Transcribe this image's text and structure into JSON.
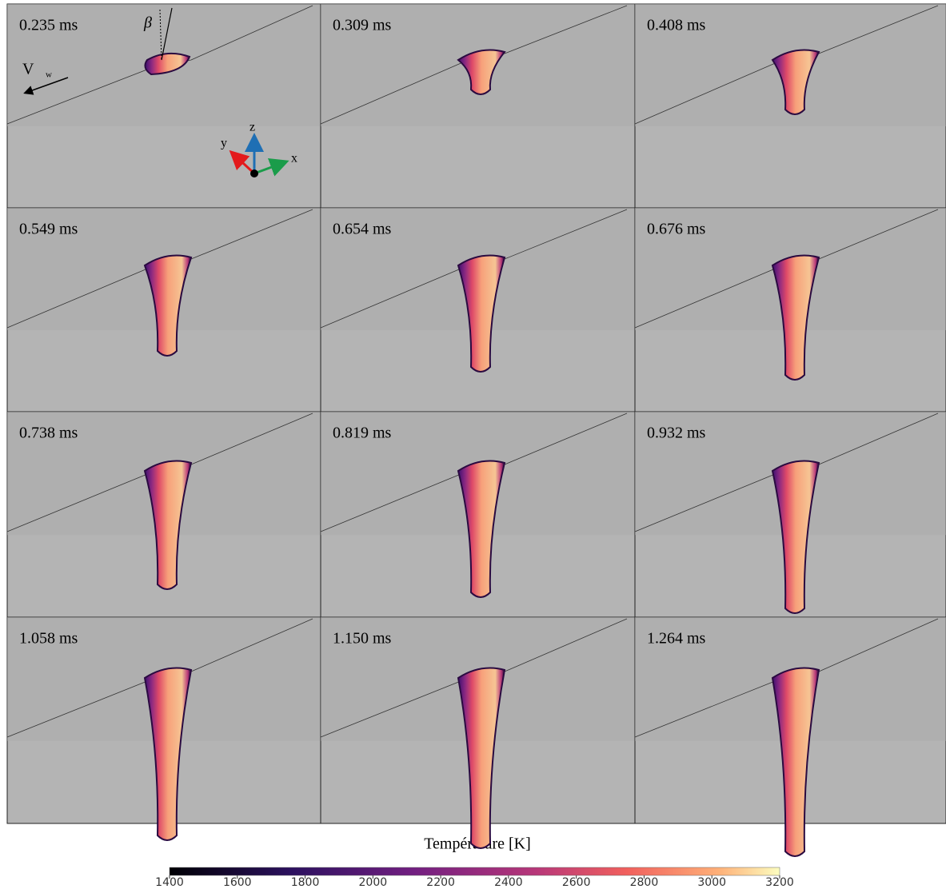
{
  "panels": [
    {
      "time": "0.235 ms"
    },
    {
      "time": "0.309 ms"
    },
    {
      "time": "0.408 ms"
    },
    {
      "time": "0.549 ms"
    },
    {
      "time": "0.654 ms"
    },
    {
      "time": "0.676 ms"
    },
    {
      "time": "0.738 ms"
    },
    {
      "time": "0.819 ms"
    },
    {
      "time": "0.932 ms"
    },
    {
      "time": "1.058 ms"
    },
    {
      "time": "1.150 ms"
    },
    {
      "time": "1.264 ms"
    }
  ],
  "annotations": {
    "beta": "β",
    "velocity": "V",
    "velocity_sub": "w",
    "axis_z": "z",
    "axis_y": "y",
    "axis_x": "x"
  },
  "colorbar": {
    "title": "Température [K]",
    "lim": [
      1400,
      3200
    ],
    "ticks": [
      1400,
      1600,
      1800,
      2000,
      2200,
      2400,
      2600,
      2800,
      3000,
      3200
    ]
  }
}
